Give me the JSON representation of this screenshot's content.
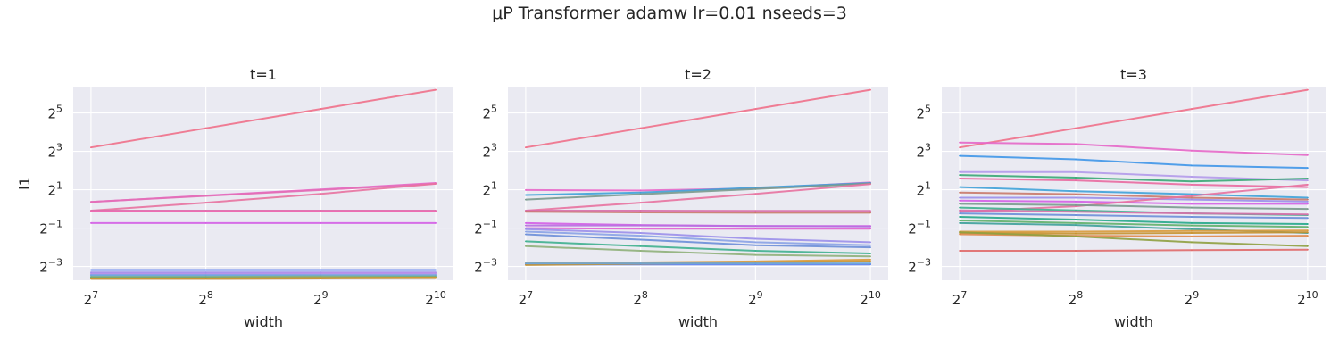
{
  "title": "μP Transformer adamw lr=0.01 nseeds=3",
  "colors": {
    "background": "#EAEAF2",
    "grid": "#FFFFFF",
    "text": "#262626"
  },
  "chart_data": [
    {
      "type": "line",
      "title": "t=1",
      "xlabel": "width",
      "ylabel": "l1",
      "xscale": "log2",
      "yscale": "log2",
      "x": [
        128,
        256,
        512,
        1024
      ],
      "x_ticks": [
        {
          "value": 128,
          "base": "2",
          "exp": "7"
        },
        {
          "value": 256,
          "base": "2",
          "exp": "8"
        },
        {
          "value": 512,
          "base": "2",
          "exp": "9"
        },
        {
          "value": 1024,
          "base": "2",
          "exp": "10"
        }
      ],
      "y_ticks": [
        {
          "value": 0.125,
          "base": "2",
          "exp": "−3"
        },
        {
          "value": 0.5,
          "base": "2",
          "exp": "−1"
        },
        {
          "value": 2,
          "base": "2",
          "exp": "1"
        },
        {
          "value": 8,
          "base": "2",
          "exp": "3"
        },
        {
          "value": 32,
          "base": "2",
          "exp": "5"
        }
      ],
      "xlim": [
        115,
        1140
      ],
      "ylim": [
        0.076,
        83
      ],
      "grid": true,
      "legend": "none",
      "series": [
        {
          "color": "#f0708a",
          "values": [
            9.2,
            18.4,
            36.9,
            74
          ]
        },
        {
          "color": "#e667c8",
          "values": [
            1.29,
            1.62,
            2.02,
            2.55
          ]
        },
        {
          "color": "#e36fb6",
          "values": [
            1.29,
            1.6,
            1.98,
            2.48
          ]
        },
        {
          "color": "#e872a0",
          "values": [
            0.94,
            1.25,
            1.72,
            2.48
          ]
        },
        {
          "color": "#d86faa",
          "values": [
            0.94,
            0.94,
            0.94,
            0.94
          ]
        },
        {
          "color": "#ee6ab2",
          "values": [
            0.92,
            0.92,
            0.92,
            0.92
          ]
        },
        {
          "color": "#d45fe6",
          "values": [
            0.6,
            0.6,
            0.6,
            0.6
          ]
        },
        {
          "color": "#5b7ef2",
          "values": [
            0.11,
            0.11,
            0.11,
            0.11
          ]
        },
        {
          "color": "#9b8fea",
          "values": [
            0.101,
            0.101,
            0.101,
            0.101
          ]
        },
        {
          "color": "#c58ae9",
          "values": [
            0.096,
            0.096,
            0.097,
            0.097
          ]
        },
        {
          "color": "#8aa2e6",
          "values": [
            0.093,
            0.093,
            0.093,
            0.093
          ]
        },
        {
          "color": "#6aa6d9",
          "values": [
            0.09,
            0.09,
            0.09,
            0.09
          ]
        },
        {
          "color": "#8fb07a",
          "values": [
            0.086,
            0.086,
            0.087,
            0.087
          ]
        },
        {
          "color": "#3fb08e",
          "values": [
            0.084,
            0.084,
            0.084,
            0.085
          ]
        },
        {
          "color": "#d99a3a",
          "values": [
            0.082,
            0.082,
            0.083,
            0.084
          ]
        },
        {
          "color": "#c8922e",
          "values": [
            0.08,
            0.08,
            0.081,
            0.082
          ]
        }
      ]
    },
    {
      "type": "line",
      "title": "t=2",
      "xlabel": "width",
      "ylabel": "",
      "xscale": "log2",
      "yscale": "log2",
      "x": [
        128,
        256,
        512,
        1024
      ],
      "x_ticks": [
        {
          "value": 128,
          "base": "2",
          "exp": "7"
        },
        {
          "value": 256,
          "base": "2",
          "exp": "8"
        },
        {
          "value": 512,
          "base": "2",
          "exp": "9"
        },
        {
          "value": 1024,
          "base": "2",
          "exp": "10"
        }
      ],
      "y_ticks": [
        {
          "value": 0.125,
          "base": "2",
          "exp": "−3"
        },
        {
          "value": 0.5,
          "base": "2",
          "exp": "−1"
        },
        {
          "value": 2,
          "base": "2",
          "exp": "1"
        },
        {
          "value": 8,
          "base": "2",
          "exp": "3"
        },
        {
          "value": 32,
          "base": "2",
          "exp": "5"
        }
      ],
      "xlim": [
        115,
        1140
      ],
      "ylim": [
        0.076,
        83
      ],
      "grid": true,
      "legend": "none",
      "series": [
        {
          "color": "#f0708a",
          "values": [
            9.2,
            18.4,
            36.9,
            74
          ]
        },
        {
          "color": "#e667c8",
          "values": [
            1.98,
            1.95,
            2.1,
            2.6
          ]
        },
        {
          "color": "#3fa2d8",
          "values": [
            1.65,
            1.8,
            2.15,
            2.55
          ]
        },
        {
          "color": "#7a9a8e",
          "values": [
            1.4,
            1.7,
            2.05,
            2.5
          ]
        },
        {
          "color": "#e872a0",
          "values": [
            0.94,
            1.25,
            1.72,
            2.45
          ]
        },
        {
          "color": "#d86faa",
          "values": [
            0.94,
            0.94,
            0.93,
            0.93
          ]
        },
        {
          "color": "#c97a6a",
          "values": [
            0.9,
            0.88,
            0.87,
            0.87
          ]
        },
        {
          "color": "#d45fe6",
          "values": [
            0.6,
            0.56,
            0.54,
            0.54
          ]
        },
        {
          "color": "#b86ee0",
          "values": [
            0.55,
            0.55,
            0.54,
            0.53
          ]
        },
        {
          "color": "#e060d0",
          "values": [
            0.5,
            0.49,
            0.49,
            0.49
          ]
        },
        {
          "color": "#9b8fea",
          "values": [
            0.48,
            0.42,
            0.34,
            0.3
          ]
        },
        {
          "color": "#8aa2e6",
          "values": [
            0.44,
            0.38,
            0.3,
            0.27
          ]
        },
        {
          "color": "#6c8ed8",
          "values": [
            0.4,
            0.33,
            0.27,
            0.25
          ]
        },
        {
          "color": "#3fb08e",
          "values": [
            0.31,
            0.26,
            0.22,
            0.2
          ]
        },
        {
          "color": "#8fb07a",
          "values": [
            0.26,
            0.22,
            0.19,
            0.18
          ]
        },
        {
          "color": "#d99a3a",
          "values": [
            0.145,
            0.145,
            0.15,
            0.16
          ]
        },
        {
          "color": "#5b7ef2",
          "values": [
            0.135,
            0.135,
            0.135,
            0.135
          ]
        },
        {
          "color": "#c8922e",
          "values": [
            0.132,
            0.138,
            0.145,
            0.15
          ]
        },
        {
          "color": "#6aa6d9",
          "values": [
            0.14,
            0.14,
            0.14,
            0.14
          ]
        }
      ]
    },
    {
      "type": "line",
      "title": "t=3",
      "xlabel": "width",
      "ylabel": "",
      "xscale": "log2",
      "yscale": "log2",
      "x": [
        128,
        256,
        512,
        1024
      ],
      "x_ticks": [
        {
          "value": 128,
          "base": "2",
          "exp": "7"
        },
        {
          "value": 256,
          "base": "2",
          "exp": "8"
        },
        {
          "value": 512,
          "base": "2",
          "exp": "9"
        },
        {
          "value": 1024,
          "base": "2",
          "exp": "10"
        }
      ],
      "y_ticks": [
        {
          "value": 0.125,
          "base": "2",
          "exp": "−3"
        },
        {
          "value": 0.5,
          "base": "2",
          "exp": "−1"
        },
        {
          "value": 2,
          "base": "2",
          "exp": "1"
        },
        {
          "value": 8,
          "base": "2",
          "exp": "3"
        },
        {
          "value": 32,
          "base": "2",
          "exp": "5"
        }
      ],
      "xlim": [
        115,
        1140
      ],
      "ylim": [
        0.076,
        83
      ],
      "grid": true,
      "legend": "none",
      "series": [
        {
          "color": "#f0708a",
          "values": [
            9.2,
            18.4,
            36.9,
            74
          ]
        },
        {
          "color": "#e667c8",
          "values": [
            11.0,
            10.4,
            8.2,
            7.0
          ]
        },
        {
          "color": "#3f96e8",
          "values": [
            6.8,
            6.0,
            4.8,
            4.4
          ]
        },
        {
          "color": "#b29aea",
          "values": [
            3.8,
            3.8,
            3.2,
            2.8
          ]
        },
        {
          "color": "#3aa876",
          "values": [
            3.4,
            3.1,
            2.7,
            3.0
          ]
        },
        {
          "color": "#e96aa0",
          "values": [
            3.0,
            2.8,
            2.4,
            2.2
          ]
        },
        {
          "color": "#3fa2d8",
          "values": [
            2.2,
            1.9,
            1.7,
            1.5
          ]
        },
        {
          "color": "#c97a6a",
          "values": [
            1.8,
            1.7,
            1.5,
            1.4
          ]
        },
        {
          "color": "#9b8fea",
          "values": [
            1.5,
            1.5,
            1.4,
            1.3
          ]
        },
        {
          "color": "#d45fe6",
          "values": [
            1.35,
            1.3,
            1.2,
            1.2
          ]
        },
        {
          "color": "#e872a0",
          "values": [
            0.9,
            1.1,
            1.6,
            2.4
          ]
        },
        {
          "color": "#7a9a8e",
          "values": [
            1.2,
            1.15,
            1.05,
            1.0
          ]
        },
        {
          "color": "#3fb08e",
          "values": [
            1.05,
            0.95,
            0.85,
            0.8
          ]
        },
        {
          "color": "#d86faa",
          "values": [
            0.95,
            0.9,
            0.85,
            0.82
          ]
        },
        {
          "color": "#6c8ed8",
          "values": [
            0.85,
            0.8,
            0.75,
            0.72
          ]
        },
        {
          "color": "#26a88a",
          "values": [
            0.75,
            0.68,
            0.6,
            0.58
          ]
        },
        {
          "color": "#5fb06a",
          "values": [
            0.66,
            0.6,
            0.55,
            0.52
          ]
        },
        {
          "color": "#3da09a",
          "values": [
            0.6,
            0.56,
            0.48,
            0.42
          ]
        },
        {
          "color": "#d99a3a",
          "values": [
            0.44,
            0.44,
            0.45,
            0.46
          ]
        },
        {
          "color": "#c8922e",
          "values": [
            0.42,
            0.41,
            0.42,
            0.43
          ]
        },
        {
          "color": "#e0884a",
          "values": [
            0.4,
            0.38,
            0.37,
            0.38
          ]
        },
        {
          "color": "#8fa040",
          "values": [
            0.43,
            0.37,
            0.3,
            0.26
          ]
        },
        {
          "color": "#e06a6a",
          "values": [
            0.22,
            0.22,
            0.225,
            0.23
          ]
        }
      ]
    }
  ]
}
